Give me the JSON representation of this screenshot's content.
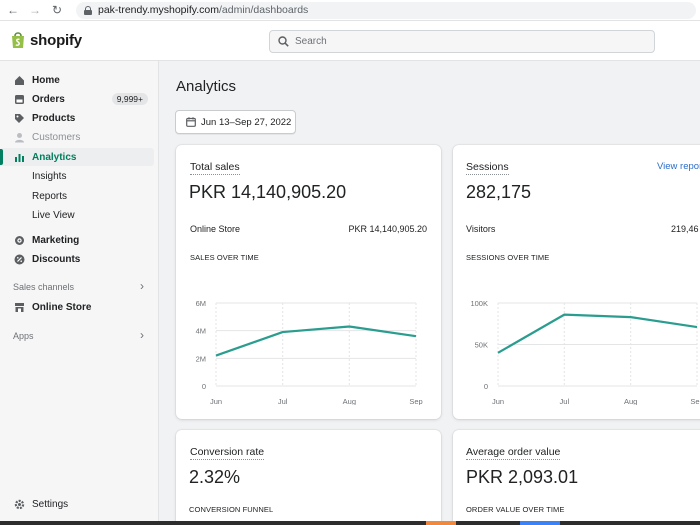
{
  "browser": {
    "url_host": "pak-trendy.myshopify.com",
    "url_path": "/admin/dashboards"
  },
  "topbar": {
    "logo_text": "shopify",
    "search_placeholder": "Search"
  },
  "sidebar": {
    "items": [
      {
        "label": "Home",
        "icon": "home-icon"
      },
      {
        "label": "Orders",
        "icon": "orders-icon",
        "badge": "9,999+"
      },
      {
        "label": "Products",
        "icon": "tag-icon"
      },
      {
        "label": "Customers",
        "icon": "person-icon"
      },
      {
        "label": "Analytics",
        "icon": "bar-chart-icon"
      },
      {
        "label": "Insights"
      },
      {
        "label": "Reports"
      },
      {
        "label": "Live View"
      },
      {
        "label": "Marketing",
        "icon": "target-icon"
      },
      {
        "label": "Discounts",
        "icon": "discount-icon"
      },
      {
        "label": "Online Store",
        "icon": "store-icon"
      },
      {
        "label": "Settings",
        "icon": "gear-icon"
      }
    ],
    "sales_channels_label": "Sales channels",
    "apps_label": "Apps"
  },
  "main": {
    "title": "Analytics",
    "date_range": "Jun 13–Sep 27, 2022"
  },
  "cards": {
    "total_sales": {
      "title": "Total sales",
      "value": "PKR 14,140,905.20",
      "row_label": "Online Store",
      "row_value": "PKR 14,140,905.20",
      "chart_title": "SALES OVER TIME"
    },
    "sessions": {
      "title": "Sessions",
      "value": "282,175",
      "link": "View report",
      "row_label": "Visitors",
      "row_value": "219,46",
      "chart_title": "SESSIONS OVER TIME"
    },
    "conversion": {
      "title": "Conversion rate",
      "value": "2.32%",
      "section_title": "CONVERSION FUNNEL"
    },
    "aov": {
      "title": "Average order value",
      "value": "PKR 2,093.01",
      "section_title": "ORDER VALUE OVER TIME"
    }
  },
  "colors": {
    "accent": "#008060",
    "line": "#2a9d8f"
  },
  "chart_data": [
    {
      "type": "line",
      "title": "SALES OVER TIME",
      "categories": [
        "Jun",
        "Jul",
        "Aug",
        "Sep"
      ],
      "values": [
        2.2,
        3.9,
        4.3,
        3.6
      ],
      "ytick_labels": [
        "0",
        "2M",
        "4M",
        "6M"
      ],
      "ylim": [
        0,
        6
      ],
      "grid": true
    },
    {
      "type": "line",
      "title": "SESSIONS OVER TIME",
      "categories": [
        "Jun",
        "Jul",
        "Aug",
        "Sep"
      ],
      "values": [
        40000,
        86000,
        83000,
        71000
      ],
      "ytick_labels": [
        "0",
        "50K",
        "100K"
      ],
      "ylim": [
        0,
        100000
      ],
      "grid": true
    }
  ]
}
